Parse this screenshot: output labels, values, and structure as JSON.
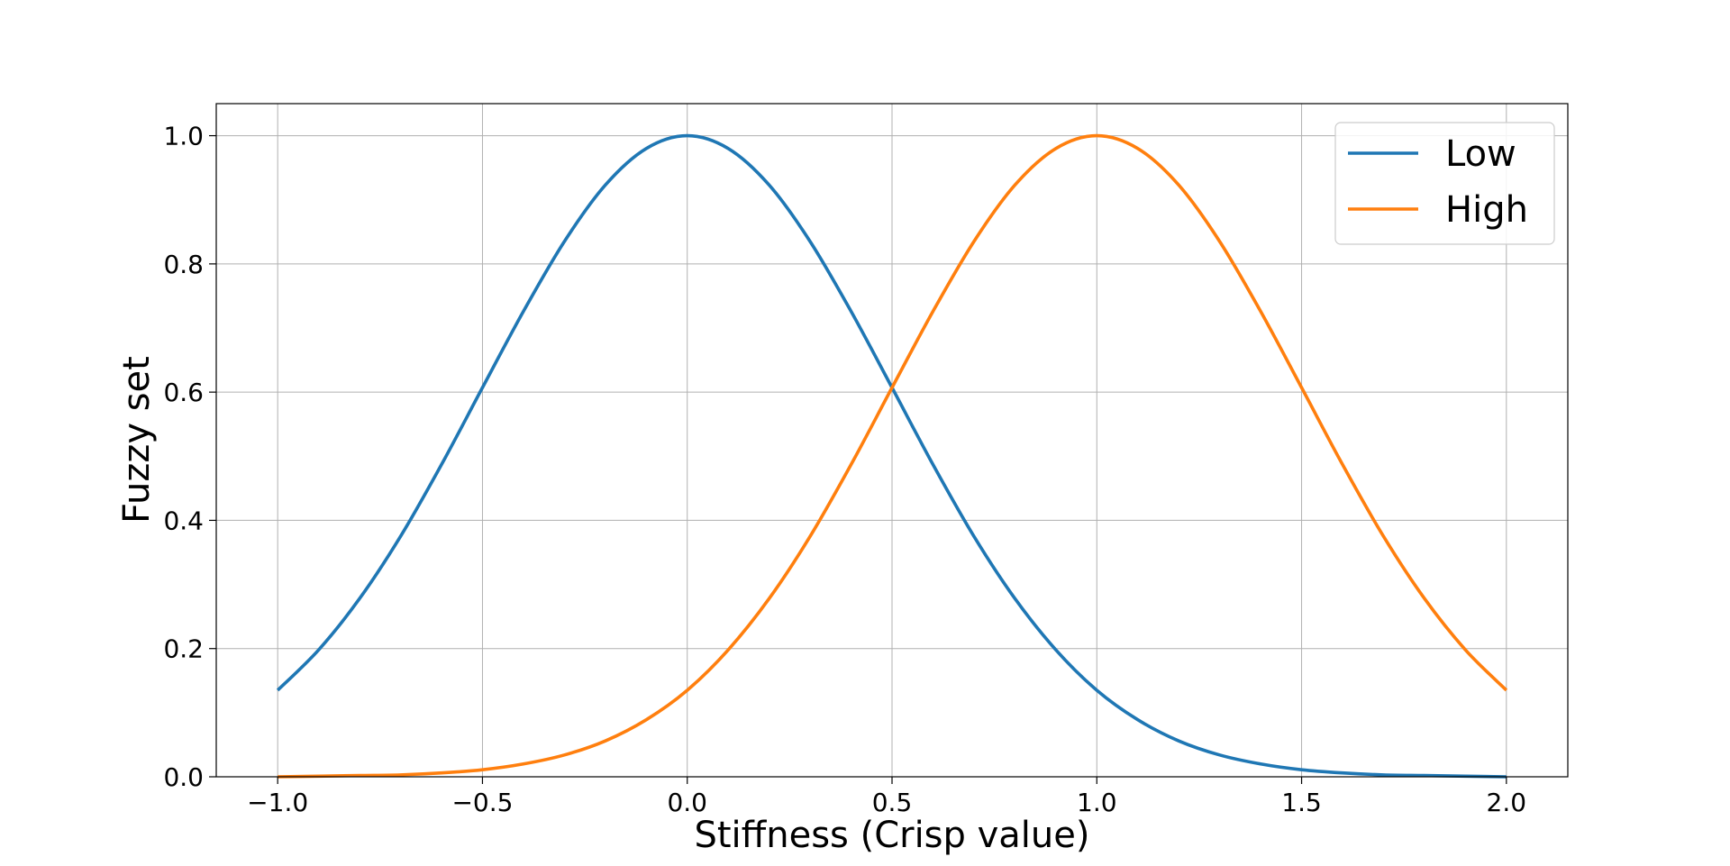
{
  "chart_data": {
    "type": "line",
    "title": "",
    "xlabel": "Stiffness (Crisp value)",
    "ylabel": "Fuzzy set",
    "xlim": [
      -1.15,
      2.15
    ],
    "ylim": [
      0,
      1.05
    ],
    "x_ticks": [
      -1.0,
      -0.5,
      0.0,
      0.5,
      1.0,
      1.5,
      2.0
    ],
    "x_tick_labels": [
      "−1.0",
      "−0.5",
      "0.0",
      "0.5",
      "1.0",
      "1.5",
      "2.0"
    ],
    "y_ticks": [
      0.0,
      0.2,
      0.4,
      0.6,
      0.8,
      1.0
    ],
    "y_tick_labels": [
      "0.0",
      "0.2",
      "0.4",
      "0.6",
      "0.8",
      "1.0"
    ],
    "grid": true,
    "legend_position": "top-right",
    "series": [
      {
        "name": "Low",
        "color": "#1f77b4",
        "x": [
          -1.0,
          -0.9,
          -0.8,
          -0.7,
          -0.6,
          -0.5,
          -0.4,
          -0.3,
          -0.2,
          -0.1,
          0.0,
          0.1,
          0.2,
          0.3,
          0.4,
          0.5,
          0.6,
          0.7,
          0.8,
          0.9,
          1.0,
          1.1,
          1.2,
          1.3,
          1.4,
          1.5,
          1.6,
          1.7,
          1.8,
          1.9,
          2.0
        ],
        "y": [
          0.135,
          0.198,
          0.278,
          0.375,
          0.487,
          0.607,
          0.726,
          0.835,
          0.923,
          0.98,
          1.0,
          0.98,
          0.923,
          0.835,
          0.726,
          0.607,
          0.487,
          0.375,
          0.278,
          0.198,
          0.135,
          0.089,
          0.056,
          0.034,
          0.02,
          0.011,
          0.006,
          0.003,
          0.002,
          0.001,
          0.0
        ]
      },
      {
        "name": "High",
        "color": "#ff7f0e",
        "x": [
          -1.0,
          -0.9,
          -0.8,
          -0.7,
          -0.6,
          -0.5,
          -0.4,
          -0.3,
          -0.2,
          -0.1,
          0.0,
          0.1,
          0.2,
          0.3,
          0.4,
          0.5,
          0.6,
          0.7,
          0.8,
          0.9,
          1.0,
          1.1,
          1.2,
          1.3,
          1.4,
          1.5,
          1.6,
          1.7,
          1.8,
          1.9,
          2.0
        ],
        "y": [
          0.0,
          0.001,
          0.002,
          0.003,
          0.006,
          0.011,
          0.02,
          0.034,
          0.056,
          0.089,
          0.135,
          0.198,
          0.278,
          0.375,
          0.487,
          0.607,
          0.726,
          0.835,
          0.923,
          0.98,
          1.0,
          0.98,
          0.923,
          0.835,
          0.726,
          0.607,
          0.487,
          0.375,
          0.278,
          0.198,
          0.135
        ]
      }
    ]
  }
}
